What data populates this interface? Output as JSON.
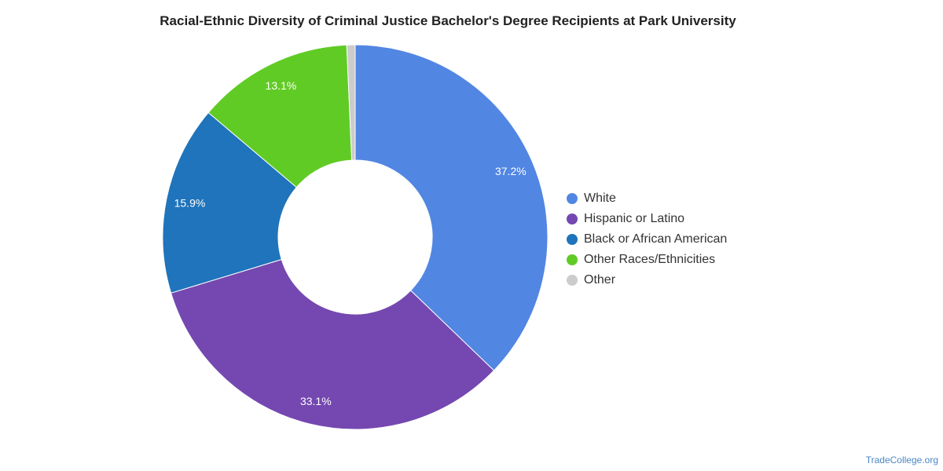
{
  "chart_data": {
    "type": "pie",
    "donut": true,
    "title": "Racial-Ethnic Diversity of Criminal Justice Bachelor's Degree Recipients at Park University",
    "series": [
      {
        "name": "White",
        "value": 37.2,
        "label": "37.2%",
        "color": "#5286e3"
      },
      {
        "name": "Hispanic or Latino",
        "value": 33.1,
        "label": "33.1%",
        "color": "#7448b0"
      },
      {
        "name": "Black or African American",
        "value": 15.9,
        "label": "15.9%",
        "color": "#1f74bb"
      },
      {
        "name": "Other Races/Ethnicities",
        "value": 13.1,
        "label": "13.1%",
        "color": "#61cb25"
      },
      {
        "name": "Other",
        "value": 0.7,
        "label": "",
        "color": "#cccccc"
      }
    ],
    "legend_position": "right"
  },
  "footer": {
    "source": "TradeCollege.org"
  }
}
